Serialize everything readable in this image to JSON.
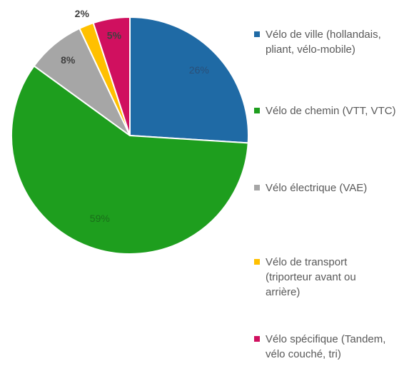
{
  "chart_data": {
    "type": "pie",
    "categories": [
      "Vélo de ville (hollandais, pliant, vélo-mobile)",
      "Vélo de chemin (VTT, VTC)",
      "Vélo électrique (VAE)",
      "Vélo de transport (triporteur avant ou arrière)",
      "Vélo spécifique (Tandem, vélo couché, tri)"
    ],
    "values": [
      26,
      59,
      8,
      2,
      5
    ],
    "value_labels": [
      "26%",
      "59%",
      "8%",
      "2%",
      "5%"
    ],
    "colors": [
      "#1f6aa5",
      "#1e9e1e",
      "#a6a6a6",
      "#ffc000",
      "#d0105f"
    ],
    "legend": "right"
  }
}
